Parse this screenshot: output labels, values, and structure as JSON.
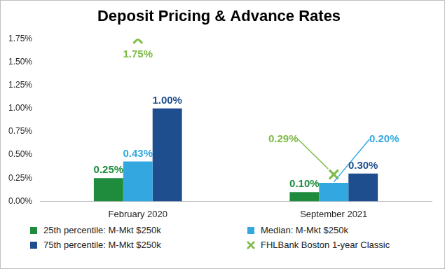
{
  "chart_data": {
    "type": "bar",
    "title": "Deposit Pricing & Advance Rates",
    "categories": [
      "February 2020",
      "September 2021"
    ],
    "series": [
      {
        "name": "25th percentile: M-Mkt $250k",
        "color": "#1e8c3c",
        "values": [
          0.25,
          0.1
        ],
        "value_labels": [
          "0.25%",
          "0.10%"
        ]
      },
      {
        "name": "Median: M-Mkt $250k",
        "color": "#33a8e0",
        "values": [
          0.43,
          0.2
        ],
        "value_labels": [
          "0.43%",
          "0.20%"
        ]
      },
      {
        "name": "75th percentile: M-Mkt $250k",
        "color": "#1f4e8f",
        "values": [
          1.0,
          0.3
        ],
        "value_labels": [
          "1.00%",
          "0.30%"
        ]
      },
      {
        "name": "FHLBank Boston 1-year Classic",
        "type": "scatter",
        "marker": "x",
        "color": "#7dbb45",
        "values": [
          1.75,
          0.29
        ],
        "value_labels": [
          "1.75%",
          "0.29%"
        ]
      }
    ],
    "ylim": [
      0,
      1.75
    ],
    "yticks": [
      {
        "value": 0,
        "label": "0.00%"
      },
      {
        "value": 0.25,
        "label": "0.25%"
      },
      {
        "value": 0.5,
        "label": "0.50%"
      },
      {
        "value": 0.75,
        "label": "0.75%"
      },
      {
        "value": 1,
        "label": "1.00%"
      },
      {
        "value": 1.25,
        "label": "1.25%"
      },
      {
        "value": 1.5,
        "label": "1.50%"
      },
      {
        "value": 1.75,
        "label": "1.75%"
      }
    ],
    "grid": false,
    "legend": "bottom",
    "data_labels": true
  }
}
